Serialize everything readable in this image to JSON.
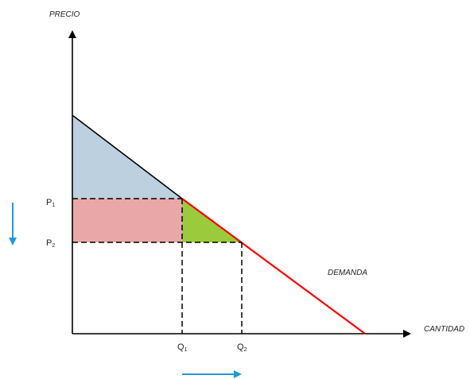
{
  "labels": {
    "y_axis": "PRECIO",
    "x_axis": "CANTIDAD",
    "demand": "DEMANDA",
    "p1_main": "P",
    "p1_sub": "1",
    "p2_main": "P",
    "p2_sub": "2",
    "q1_main": "Q",
    "q1_sub": "1",
    "q2_main": "Q",
    "q2_sub": "2"
  },
  "colors": {
    "axis": "#000000",
    "demand_black": "#000000",
    "demand_red": "#ff0000",
    "consumer_surplus": "#bdd0e0",
    "transfer_area": "#e9a7a7",
    "gain_area": "#9bcb3c",
    "arrows": "#1f9ad8"
  }
}
